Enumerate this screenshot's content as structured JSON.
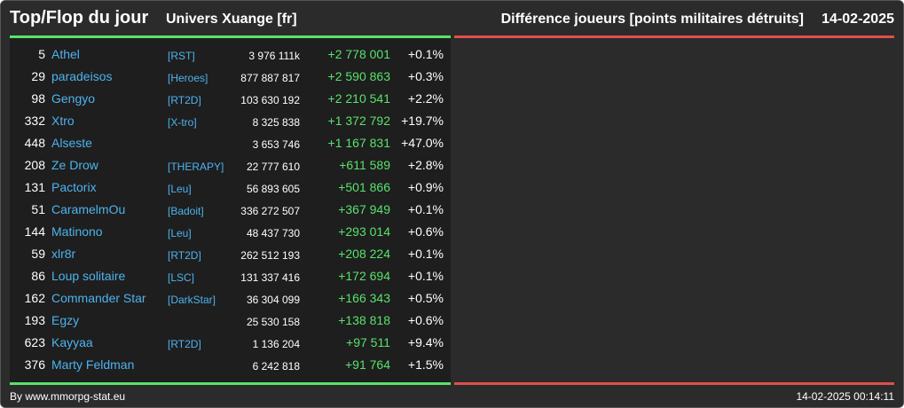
{
  "header": {
    "title": "Top/Flop du jour",
    "universe": "Univers Xuange [fr]",
    "metric": "Différence joueurs [points militaires détruits]",
    "date": "14-02-2025"
  },
  "colors": {
    "background": "#2b2b2b",
    "panel": "#1e1e1e",
    "top_accent": "#57e36b",
    "flop_accent": "#e0504a",
    "link": "#4db3ef",
    "gain": "#57e36b"
  },
  "top_rows": [
    {
      "rank": "5",
      "name": "Athel",
      "alliance": "[RST]",
      "points": "3 976 111k",
      "diff": "+2 778 001",
      "pct": "+0.1%"
    },
    {
      "rank": "29",
      "name": "paradeisos",
      "alliance": "[Heroes]",
      "points": "877 887 817",
      "diff": "+2 590 863",
      "pct": "+0.3%"
    },
    {
      "rank": "98",
      "name": "Gengyo",
      "alliance": "[RT2D]",
      "points": "103 630 192",
      "diff": "+2 210 541",
      "pct": "+2.2%"
    },
    {
      "rank": "332",
      "name": "Xtro",
      "alliance": "[X-tro]",
      "points": "8 325 838",
      "diff": "+1 372 792",
      "pct": "+19.7%"
    },
    {
      "rank": "448",
      "name": "Alseste",
      "alliance": "",
      "points": "3 653 746",
      "diff": "+1 167 831",
      "pct": "+47.0%"
    },
    {
      "rank": "208",
      "name": "Ze Drow",
      "alliance": "[THERAPY]",
      "points": "22 777 610",
      "diff": "+611 589",
      "pct": "+2.8%"
    },
    {
      "rank": "131",
      "name": "Pactorix",
      "alliance": "[Leu]",
      "points": "56 893 605",
      "diff": "+501 866",
      "pct": "+0.9%"
    },
    {
      "rank": "51",
      "name": "CaramelmOu",
      "alliance": "[Badoit]",
      "points": "336 272 507",
      "diff": "+367 949",
      "pct": "+0.1%"
    },
    {
      "rank": "144",
      "name": "Matinono",
      "alliance": "[Leu]",
      "points": "48 437 730",
      "diff": "+293 014",
      "pct": "+0.6%"
    },
    {
      "rank": "59",
      "name": "xlr8r",
      "alliance": "[RT2D]",
      "points": "262 512 193",
      "diff": "+208 224",
      "pct": "+0.1%"
    },
    {
      "rank": "86",
      "name": "Loup solitaire",
      "alliance": "[LSC]",
      "points": "131 337 416",
      "diff": "+172 694",
      "pct": "+0.1%"
    },
    {
      "rank": "162",
      "name": "Commander Star",
      "alliance": "[DarkStar]",
      "points": "36 304 099",
      "diff": "+166 343",
      "pct": "+0.5%"
    },
    {
      "rank": "193",
      "name": "Egzy",
      "alliance": "",
      "points": "25 530 158",
      "diff": "+138 818",
      "pct": "+0.6%"
    },
    {
      "rank": "623",
      "name": "Kayyaa",
      "alliance": "[RT2D]",
      "points": "1 136 204",
      "diff": "+97 511",
      "pct": "+9.4%"
    },
    {
      "rank": "376",
      "name": "Marty Feldman",
      "alliance": "",
      "points": "6 242 818",
      "diff": "+91 764",
      "pct": "+1.5%"
    }
  ],
  "footer": {
    "credit": "By www.mmorpg-stat.eu",
    "timestamp": "14-02-2025 00:14:11"
  }
}
